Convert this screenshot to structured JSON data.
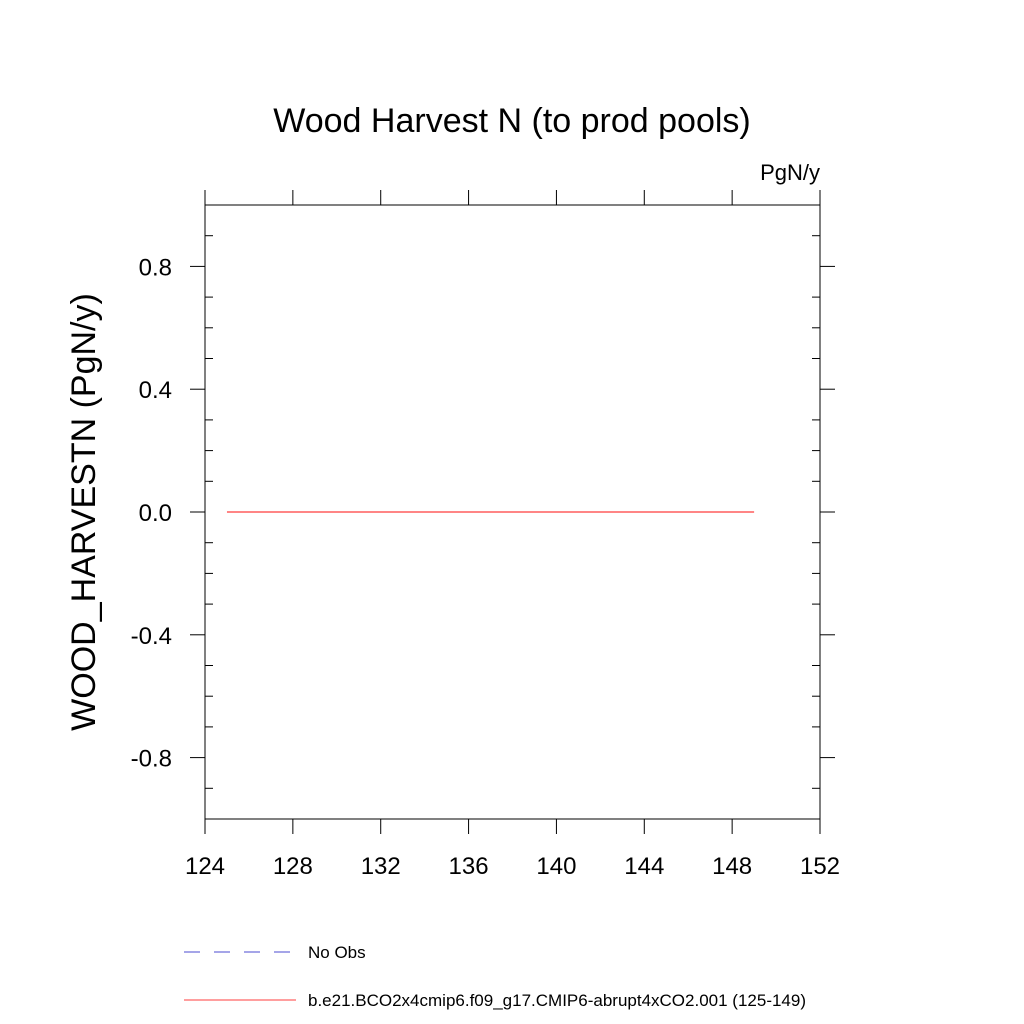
{
  "chart_data": {
    "type": "line",
    "title": "Wood Harvest N (to prod pools)",
    "units_label": "PgN/y",
    "xlabel": "",
    "ylabel": "WOOD_HARVESTN  (PgN/y)",
    "xlim": [
      124,
      152
    ],
    "ylim": [
      -1.0,
      1.0
    ],
    "x_ticks": [
      124,
      128,
      132,
      136,
      140,
      144,
      148,
      152
    ],
    "x_tick_labels": [
      "124",
      "128",
      "132",
      "136",
      "140",
      "144",
      "148",
      "152"
    ],
    "y_ticks": [
      0.8,
      0.4,
      0.0,
      -0.4,
      -0.8
    ],
    "y_tick_labels": [
      "0.8",
      "0.4",
      "0.0",
      "-0.4",
      "-0.8"
    ],
    "grid": false,
    "legend_position": "bottom",
    "series": [
      {
        "name": "No Obs",
        "color": "#4b4bd0",
        "dash": "dashed",
        "x": [],
        "y": []
      },
      {
        "name": "b.e21.BCO2x4cmip6.f09_g17.CMIP6-abrupt4xCO2.001 (125-149)",
        "color": "#ff3c3c",
        "dash": "solid",
        "x": [
          125,
          126,
          127,
          128,
          129,
          130,
          131,
          132,
          133,
          134,
          135,
          136,
          137,
          138,
          139,
          140,
          141,
          142,
          143,
          144,
          145,
          146,
          147,
          148,
          149
        ],
        "y": [
          0,
          0,
          0,
          0,
          0,
          0,
          0,
          0,
          0,
          0,
          0,
          0,
          0,
          0,
          0,
          0,
          0,
          0,
          0,
          0,
          0,
          0,
          0,
          0,
          0
        ]
      }
    ]
  }
}
